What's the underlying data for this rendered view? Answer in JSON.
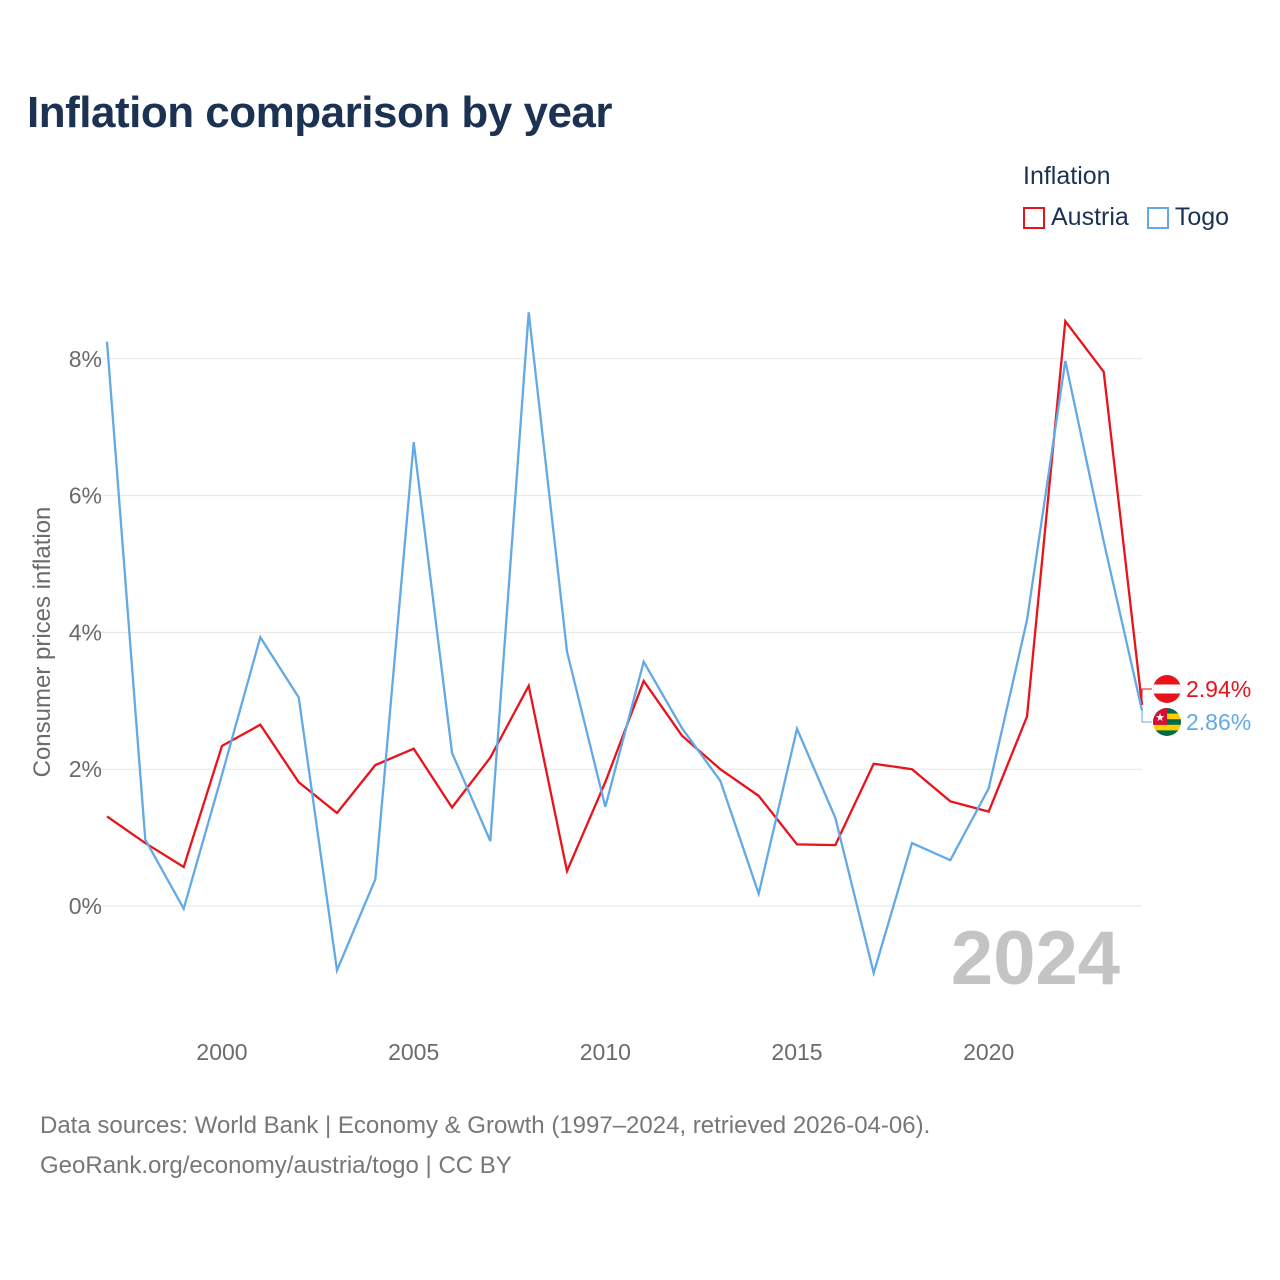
{
  "title": "Inflation comparison by year",
  "legend": {
    "title": "Inflation",
    "items": [
      {
        "name": "Austria",
        "color": "#e8131b"
      },
      {
        "name": "Togo",
        "color": "#63a9e6"
      }
    ]
  },
  "source": {
    "line1": "Data sources: World Bank | Economy & Growth (1997–2024, retrieved 2026-04-06).",
    "line2": "GeoRank.org/economy/austria/togo | CC BY"
  },
  "chart_data": {
    "type": "line",
    "title": "Inflation comparison by year",
    "xlabel": "",
    "ylabel": "Consumer prices inflation",
    "xlim": [
      1997,
      2024
    ],
    "ylim": [
      -1.5,
      9.0
    ],
    "grid": true,
    "y_ticks": [
      0,
      2,
      4,
      6,
      8
    ],
    "y_tick_labels": [
      "0%",
      "2%",
      "4%",
      "6%",
      "8%"
    ],
    "x_ticks": [
      2000,
      2005,
      2010,
      2015,
      2020
    ],
    "x_tick_labels": [
      "2000",
      "2005",
      "2010",
      "2015",
      "2020"
    ],
    "highlight_year": "2024",
    "x": [
      1997,
      1998,
      1999,
      2000,
      2001,
      2002,
      2003,
      2004,
      2005,
      2006,
      2007,
      2008,
      2009,
      2010,
      2011,
      2012,
      2013,
      2014,
      2015,
      2016,
      2017,
      2018,
      2019,
      2020,
      2021,
      2022,
      2023,
      2024
    ],
    "series": [
      {
        "name": "Austria",
        "color": "#e8131b",
        "end_label": "2.94%",
        "values": [
          1.31,
          0.92,
          0.57,
          2.34,
          2.65,
          1.81,
          1.36,
          2.06,
          2.3,
          1.44,
          2.17,
          3.22,
          0.51,
          1.81,
          3.29,
          2.49,
          2.0,
          1.61,
          0.9,
          0.89,
          2.08,
          2.0,
          1.53,
          1.38,
          2.77,
          8.55,
          7.81,
          2.94
        ]
      },
      {
        "name": "Togo",
        "color": "#63a9e6",
        "end_label": "2.86%",
        "values": [
          8.25,
          0.97,
          -0.04,
          1.92,
          3.93,
          3.05,
          -0.94,
          0.39,
          6.78,
          2.24,
          0.95,
          8.68,
          3.72,
          1.45,
          3.57,
          2.6,
          1.83,
          0.18,
          2.59,
          1.29,
          -0.98,
          0.92,
          0.67,
          1.72,
          4.18,
          7.97,
          5.33,
          2.86
        ]
      }
    ]
  }
}
